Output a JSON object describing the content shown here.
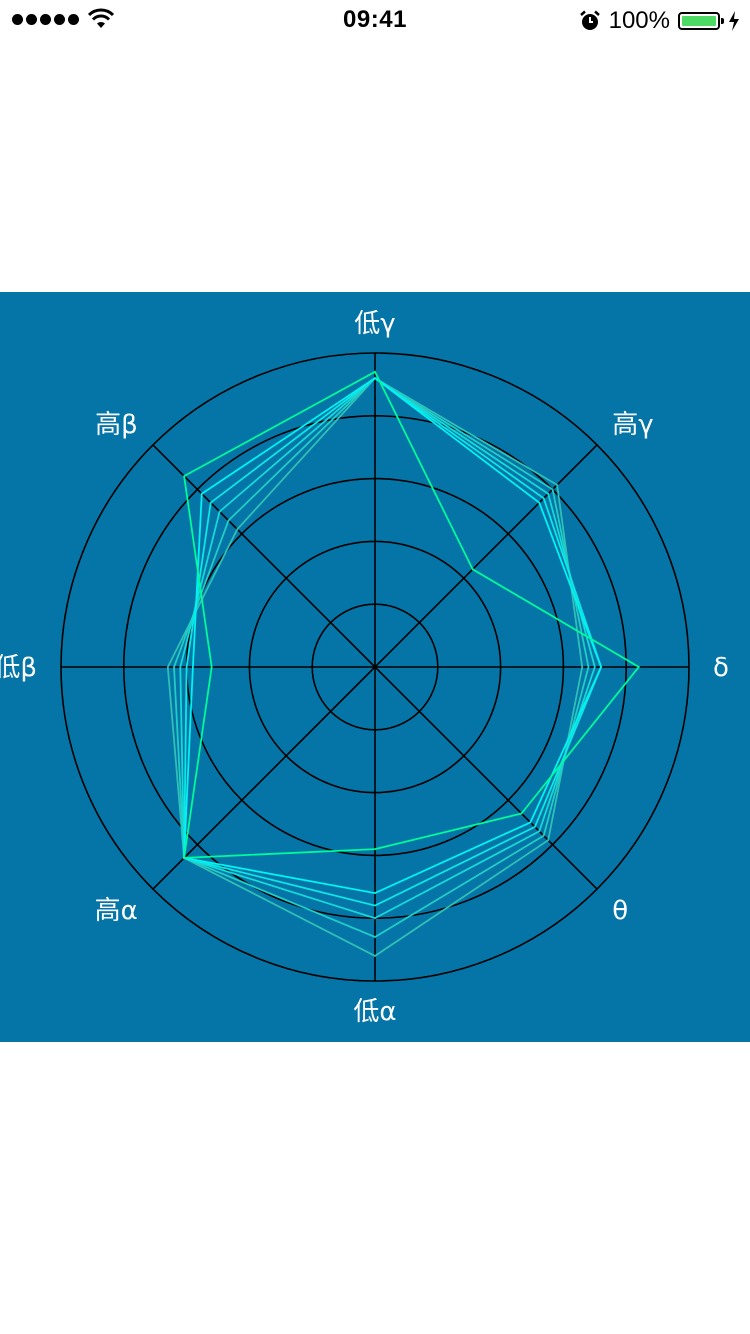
{
  "status_bar": {
    "time": "09:41",
    "battery_percent": "100%",
    "battery_level": 1.0,
    "icons": [
      "signal-dots-icon",
      "wifi-icon",
      "alarm-icon",
      "battery-icon",
      "charging-bolt-icon"
    ]
  },
  "colors": {
    "panel_background": "#0475a6",
    "grid": "#000000",
    "label": "#ffffff",
    "series": [
      "#2fbfb7",
      "#22ccc6",
      "#17d8d8",
      "#0de6e6",
      "#00f2f2",
      "#00fa9a"
    ]
  },
  "chart_data": {
    "type": "radar",
    "axes": [
      "低γ",
      "高γ",
      "δ",
      "θ",
      "低α",
      "高α",
      "低β",
      "高β"
    ],
    "range": [
      0,
      5
    ],
    "rings": 5,
    "grid": true,
    "series": [
      {
        "values": [
          4.6,
          4.1,
          3.3,
          3.9,
          4.6,
          4.3,
          3.3,
          3.1
        ]
      },
      {
        "values": [
          4.6,
          4.0,
          3.4,
          3.8,
          4.3,
          4.3,
          3.2,
          3.3
        ]
      },
      {
        "values": [
          4.6,
          3.9,
          3.5,
          3.7,
          4.0,
          4.3,
          3.1,
          3.5
        ]
      },
      {
        "values": [
          4.6,
          3.8,
          3.6,
          3.6,
          3.8,
          4.3,
          3.0,
          3.7
        ]
      },
      {
        "values": [
          4.6,
          3.7,
          3.6,
          3.5,
          3.6,
          4.3,
          2.9,
          3.9
        ]
      },
      {
        "values": [
          4.7,
          2.2,
          4.2,
          3.3,
          2.9,
          4.3,
          2.6,
          4.3
        ]
      }
    ]
  }
}
